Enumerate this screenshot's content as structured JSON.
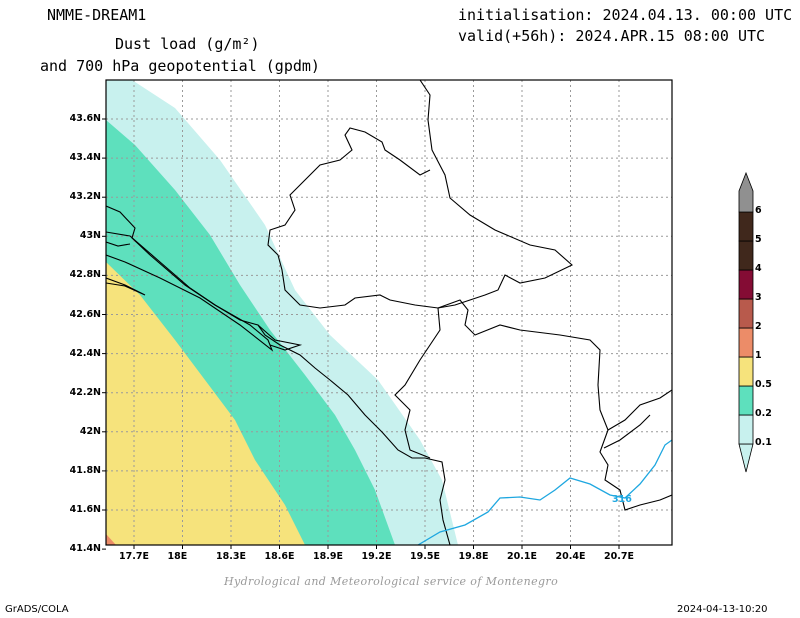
{
  "header": {
    "model": "NMME-DREAM1",
    "field_line1": "Dust load (g/m²)",
    "field_line2": "and 700 hPa geopotential (gpdm)",
    "init": "initialisation: 2024.04.13. 00:00 UTC",
    "valid": "valid(+56h): 2024.APR.15 08:00 UTC"
  },
  "map": {
    "lat_labels": [
      "43.6N",
      "43.4N",
      "43.2N",
      "43N",
      "42.8N",
      "42.6N",
      "42.4N",
      "42.2N",
      "42N",
      "41.8N",
      "41.6N",
      "41.4N"
    ],
    "lon_labels": [
      "17.7E",
      "18E",
      "18.3E",
      "18.6E",
      "18.9E",
      "19.2E",
      "19.5E",
      "19.8E",
      "20.1E",
      "20.4E",
      "20.7E"
    ],
    "contour_label": "316",
    "colors": {
      "c01": "#c8f1ee",
      "c02": "#5ee0bd",
      "c05": "#f6e37c",
      "c1": "#ec8c68",
      "c2": "#b85a4c",
      "c3": "#840c34",
      "c4": "#40281c",
      "c5": "#40281c",
      "c6": "#9870a8",
      "contour": "#1ea7e0"
    }
  },
  "legend": {
    "labels": [
      "6",
      "5",
      "4",
      "3",
      "2",
      "1",
      "0.5",
      "0.2",
      "0.1"
    ]
  },
  "footer": {
    "credit": "Hydrological and Meteorological service of Montenegro",
    "software": "GrADS/COLA",
    "timestamp": "2024-04-13-10:20"
  }
}
